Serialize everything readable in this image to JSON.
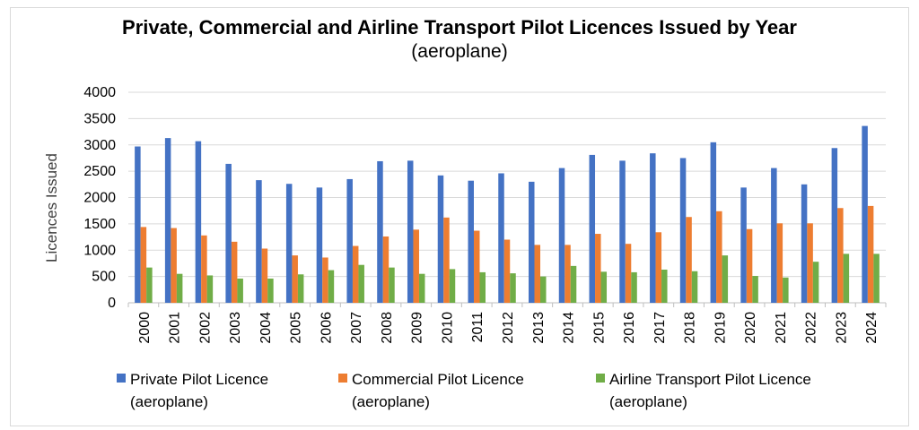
{
  "chart_data": {
    "type": "bar",
    "title": "Private, Commercial and Airline Transport Pilot Licences Issued by Year",
    "subtitle": "(aeroplane)",
    "xlabel": "",
    "ylabel": "Licences Issued",
    "ylim": [
      0,
      4000
    ],
    "yticks": [
      0,
      500,
      1000,
      1500,
      2000,
      2500,
      3000,
      3500,
      4000
    ],
    "grid": true,
    "legend_position": "bottom",
    "categories": [
      "2000",
      "2001",
      "2002",
      "2003",
      "2004",
      "2005",
      "2006",
      "2007",
      "2008",
      "2009",
      "2010",
      "2011",
      "2012",
      "2013",
      "2014",
      "2015",
      "2016",
      "2017",
      "2018",
      "2019",
      "2020",
      "2021",
      "2022",
      "2023",
      "2024"
    ],
    "series": [
      {
        "name": "Private Pilot Licence (aeroplane)",
        "legend_lines": [
          "Private Pilot Licence",
          "(aeroplane)"
        ],
        "color": "#4472C4",
        "values": [
          2970,
          3130,
          3070,
          2640,
          2330,
          2260,
          2190,
          2350,
          2690,
          2700,
          2420,
          2320,
          2460,
          2300,
          2560,
          2810,
          2700,
          2840,
          2750,
          3050,
          2190,
          2560,
          2250,
          2940,
          3360
        ]
      },
      {
        "name": "Commercial Pilot Licence (aeroplane)",
        "legend_lines": [
          "Commercial Pilot Licence",
          "(aeroplane)"
        ],
        "color": "#ED7D31",
        "values": [
          1440,
          1420,
          1280,
          1160,
          1030,
          900,
          860,
          1080,
          1260,
          1390,
          1620,
          1370,
          1200,
          1100,
          1100,
          1310,
          1120,
          1340,
          1630,
          1740,
          1400,
          1510,
          1510,
          1800,
          1840
        ]
      },
      {
        "name": "Airline Transport Pilot Licence (aeroplane)",
        "legend_lines": [
          "Airline Transport Pilot Licence",
          "(aeroplane)"
        ],
        "color": "#70AD47",
        "values": [
          670,
          550,
          520,
          460,
          460,
          540,
          620,
          720,
          670,
          550,
          640,
          580,
          560,
          500,
          700,
          590,
          580,
          630,
          600,
          900,
          510,
          480,
          780,
          930,
          930
        ]
      }
    ]
  }
}
